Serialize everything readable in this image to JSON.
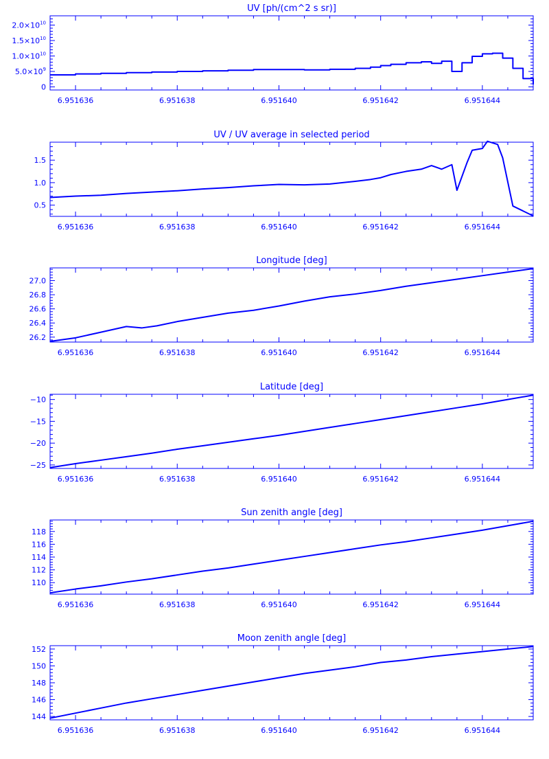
{
  "color": "#0000ff",
  "chart_data": [
    {
      "type": "line",
      "title": "UV [ph/(cm^2 s sr)]",
      "xlim": [
        6.9516355,
        6.951645
      ],
      "ylim": [
        -1000000000.0,
        23000000000.0
      ],
      "xticks": [
        6.951636,
        6.951638,
        6.95164,
        6.951642,
        6.951644
      ],
      "xtick_labels": [
        "6.951636",
        "6.951638",
        "6.951640",
        "6.951642",
        "6.951644"
      ],
      "yticks": [
        0,
        5000000000.0,
        10000000000.0,
        15000000000.0,
        20000000000.0
      ],
      "ytick_labels": [
        {
          "mant": "0",
          "exp": ""
        },
        {
          "mant": "5.0×10",
          "exp": "9"
        },
        {
          "mant": "1.0×10",
          "exp": "10"
        },
        {
          "mant": "1.5×10",
          "exp": "10"
        },
        {
          "mant": "2.0×10",
          "exp": "10"
        }
      ],
      "step": true,
      "x": [
        6.9516355,
        6.951636,
        6.9516365,
        6.951637,
        6.9516375,
        6.951638,
        6.9516385,
        6.951639,
        6.9516395,
        6.95164,
        6.9516405,
        6.951641,
        6.9516415,
        6.9516418,
        6.951642,
        6.9516422,
        6.9516425,
        6.9516428,
        6.951643,
        6.9516432,
        6.9516434,
        6.9516436,
        6.9516438,
        6.951644,
        6.9516442,
        6.9516444,
        6.9516446,
        6.9516448,
        6.951645
      ],
      "y": [
        3900000000.0,
        4200000000.0,
        4400000000.0,
        4600000000.0,
        4800000000.0,
        5000000000.0,
        5200000000.0,
        5400000000.0,
        5600000000.0,
        5600000000.0,
        5500000000.0,
        5700000000.0,
        6000000000.0,
        6400000000.0,
        6900000000.0,
        7300000000.0,
        7800000000.0,
        8100000000.0,
        7600000000.0,
        8300000000.0,
        5000000000.0,
        7800000000.0,
        9900000000.0,
        10700000000.0,
        10900000000.0,
        9300000000.0,
        6000000000.0,
        2700000000.0,
        800000000.0
      ]
    },
    {
      "type": "line",
      "title": "UV / UV average in selected period",
      "xlim": [
        6.9516355,
        6.951645
      ],
      "ylim": [
        0.25,
        1.9
      ],
      "xticks": [
        6.951636,
        6.951638,
        6.95164,
        6.951642,
        6.951644
      ],
      "xtick_labels": [
        "6.951636",
        "6.951638",
        "6.951640",
        "6.951642",
        "6.951644"
      ],
      "yticks": [
        0.5,
        1.0,
        1.5
      ],
      "ytick_labels": [
        {
          "mant": "0.5",
          "exp": ""
        },
        {
          "mant": "1.0",
          "exp": ""
        },
        {
          "mant": "1.5",
          "exp": ""
        }
      ],
      "step": false,
      "x": [
        6.9516355,
        6.951636,
        6.9516365,
        6.951637,
        6.9516375,
        6.951638,
        6.9516385,
        6.951639,
        6.9516395,
        6.95164,
        6.9516405,
        6.951641,
        6.9516415,
        6.9516418,
        6.951642,
        6.9516422,
        6.9516425,
        6.9516428,
        6.951643,
        6.9516432,
        6.9516434,
        6.9516435,
        6.9516437,
        6.9516438,
        6.951644,
        6.9516441,
        6.9516443,
        6.9516444,
        6.9516446,
        6.951645
      ],
      "y": [
        0.67,
        0.7,
        0.72,
        0.76,
        0.79,
        0.82,
        0.86,
        0.89,
        0.93,
        0.96,
        0.95,
        0.97,
        1.03,
        1.07,
        1.11,
        1.18,
        1.25,
        1.3,
        1.38,
        1.3,
        1.4,
        0.83,
        1.45,
        1.72,
        1.76,
        1.92,
        1.85,
        1.55,
        0.48,
        0.26
      ]
    },
    {
      "type": "line",
      "title": "Longitude [deg]",
      "xlim": [
        6.9516355,
        6.951645
      ],
      "ylim": [
        26.13,
        27.18
      ],
      "xticks": [
        6.951636,
        6.951638,
        6.95164,
        6.951642,
        6.951644
      ],
      "xtick_labels": [
        "6.951636",
        "6.951638",
        "6.951640",
        "6.951642",
        "6.951644"
      ],
      "yticks": [
        26.2,
        26.4,
        26.6,
        26.8,
        27.0
      ],
      "ytick_labels": [
        {
          "mant": "26.2",
          "exp": ""
        },
        {
          "mant": "26.4",
          "exp": ""
        },
        {
          "mant": "26.6",
          "exp": ""
        },
        {
          "mant": "26.8",
          "exp": ""
        },
        {
          "mant": "27.0",
          "exp": ""
        }
      ],
      "step": false,
      "x": [
        6.9516355,
        6.951636,
        6.9516365,
        6.951637,
        6.9516373,
        6.9516376,
        6.951638,
        6.9516385,
        6.951639,
        6.9516395,
        6.95164,
        6.9516405,
        6.951641,
        6.9516415,
        6.951642,
        6.9516425,
        6.951643,
        6.9516435,
        6.951644,
        6.9516445,
        6.951645
      ],
      "y": [
        26.14,
        26.19,
        26.27,
        26.35,
        26.33,
        26.36,
        26.42,
        26.48,
        26.54,
        26.58,
        26.64,
        26.71,
        26.77,
        26.81,
        26.86,
        26.92,
        26.97,
        27.02,
        27.07,
        27.12,
        27.17
      ]
    },
    {
      "type": "line",
      "title": "Latitude [deg]",
      "xlim": [
        6.9516355,
        6.951645
      ],
      "ylim": [
        -25.8,
        -8.8
      ],
      "xticks": [
        6.951636,
        6.951638,
        6.95164,
        6.951642,
        6.951644
      ],
      "xtick_labels": [
        "6.951636",
        "6.951638",
        "6.951640",
        "6.951642",
        "6.951644"
      ],
      "yticks": [
        -25,
        -20,
        -15,
        -10
      ],
      "ytick_labels": [
        {
          "mant": "−25",
          "exp": ""
        },
        {
          "mant": "−20",
          "exp": ""
        },
        {
          "mant": "−15",
          "exp": ""
        },
        {
          "mant": "−10",
          "exp": ""
        }
      ],
      "step": false,
      "x": [
        6.9516355,
        6.951636,
        6.9516365,
        6.951637,
        6.9516375,
        6.951638,
        6.9516385,
        6.951639,
        6.9516395,
        6.95164,
        6.9516405,
        6.951641,
        6.9516415,
        6.951642,
        6.9516425,
        6.951643,
        6.9516435,
        6.951644,
        6.9516445,
        6.951645
      ],
      "y": [
        -25.6,
        -24.7,
        -23.9,
        -23.1,
        -22.3,
        -21.4,
        -20.6,
        -19.8,
        -19.0,
        -18.2,
        -17.3,
        -16.4,
        -15.5,
        -14.6,
        -13.7,
        -12.8,
        -11.9,
        -11.0,
        -10.0,
        -9.0
      ]
    },
    {
      "type": "line",
      "title": "Sun zenith angle [deg]",
      "xlim": [
        6.9516355,
        6.951645
      ],
      "ylim": [
        108.2,
        119.8
      ],
      "xticks": [
        6.951636,
        6.951638,
        6.95164,
        6.951642,
        6.951644
      ],
      "xtick_labels": [
        "6.951636",
        "6.951638",
        "6.951640",
        "6.951642",
        "6.951644"
      ],
      "yticks": [
        110,
        112,
        114,
        116,
        118
      ],
      "ytick_labels": [
        {
          "mant": "110",
          "exp": ""
        },
        {
          "mant": "112",
          "exp": ""
        },
        {
          "mant": "114",
          "exp": ""
        },
        {
          "mant": "116",
          "exp": ""
        },
        {
          "mant": "118",
          "exp": ""
        }
      ],
      "step": false,
      "x": [
        6.9516355,
        6.951636,
        6.9516365,
        6.951637,
        6.9516375,
        6.951638,
        6.9516385,
        6.951639,
        6.9516395,
        6.95164,
        6.9516405,
        6.951641,
        6.9516415,
        6.951642,
        6.9516425,
        6.951643,
        6.9516435,
        6.951644,
        6.9516445,
        6.951645
      ],
      "y": [
        108.4,
        109.0,
        109.5,
        110.1,
        110.6,
        111.2,
        111.8,
        112.3,
        112.9,
        113.5,
        114.1,
        114.7,
        115.3,
        115.9,
        116.4,
        117.0,
        117.6,
        118.2,
        118.9,
        119.6
      ]
    },
    {
      "type": "line",
      "title": "Moon zenith angle [deg]",
      "xlim": [
        6.9516355,
        6.951645
      ],
      "ylim": [
        143.6,
        152.4
      ],
      "xticks": [
        6.951636,
        6.951638,
        6.95164,
        6.951642,
        6.951644
      ],
      "xtick_labels": [
        "6.951636",
        "6.951638",
        "6.951640",
        "6.951642",
        "6.951644"
      ],
      "yticks": [
        144,
        146,
        148,
        150,
        152
      ],
      "ytick_labels": [
        {
          "mant": "144",
          "exp": ""
        },
        {
          "mant": "146",
          "exp": ""
        },
        {
          "mant": "148",
          "exp": ""
        },
        {
          "mant": "150",
          "exp": ""
        },
        {
          "mant": "152",
          "exp": ""
        }
      ],
      "step": false,
      "x": [
        6.9516355,
        6.951636,
        6.9516365,
        6.951637,
        6.9516375,
        6.951638,
        6.9516385,
        6.951639,
        6.9516395,
        6.95164,
        6.9516405,
        6.951641,
        6.9516415,
        6.951642,
        6.9516425,
        6.951643,
        6.9516435,
        6.951644,
        6.9516445,
        6.951645
      ],
      "y": [
        143.8,
        144.4,
        145.0,
        145.6,
        146.1,
        146.6,
        147.1,
        147.6,
        148.1,
        148.6,
        149.1,
        149.5,
        149.9,
        150.4,
        150.7,
        151.1,
        151.4,
        151.7,
        152.0,
        152.3
      ]
    }
  ]
}
